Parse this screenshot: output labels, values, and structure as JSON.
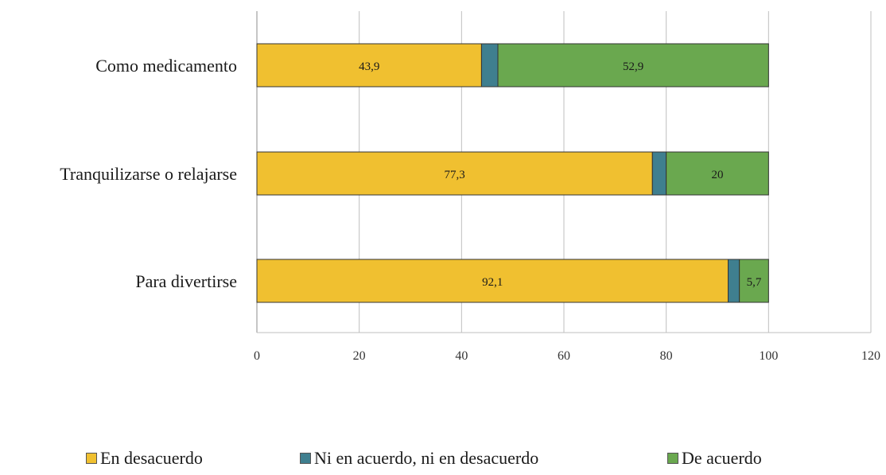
{
  "chart_data": {
    "type": "bar",
    "orientation": "horizontal",
    "stacked": true,
    "categories": [
      "Como medicamento",
      "Tranquilizarse o relajarse",
      "Para divertirse"
    ],
    "series": [
      {
        "name": "En desacuerdo",
        "values": [
          43.9,
          77.3,
          92.1
        ],
        "labels": [
          "43,9",
          "77,3",
          "92,1"
        ],
        "color": "#f0c030"
      },
      {
        "name": "Ni en acuerdo, ni en desacuerdo",
        "values": [
          3.2,
          2.7,
          2.2
        ],
        "labels": [
          "",
          "",
          ""
        ],
        "color": "#3f7f8f"
      },
      {
        "name": "De acuerdo",
        "values": [
          52.9,
          20,
          5.7
        ],
        "labels": [
          "52,9",
          "20",
          "5,7"
        ],
        "color": "#6aa84f"
      }
    ],
    "xlim": [
      0,
      120
    ],
    "xticks": [
      "0",
      "20",
      "40",
      "60",
      "80",
      "100",
      "120"
    ],
    "grid": true,
    "legend_position": "bottom"
  }
}
